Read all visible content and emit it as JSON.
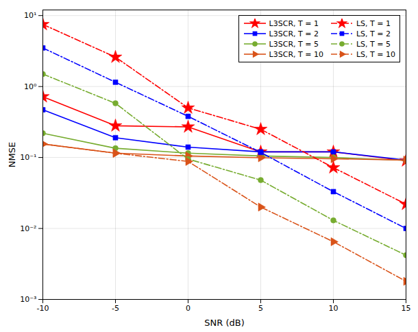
{
  "chart_data": {
    "type": "line",
    "xlabel": "SNR (dB)",
    "ylabel": "NMSE",
    "x": [
      -10,
      -5,
      0,
      5,
      10,
      15
    ],
    "xlim": [
      -10,
      15
    ],
    "xticks": [
      -10,
      -5,
      0,
      5,
      10,
      15
    ],
    "ylim": [
      0.001,
      12
    ],
    "yticks": [
      {
        "value": 0.001,
        "label": "10⁻³"
      },
      {
        "value": 0.01,
        "label": "10⁻²"
      },
      {
        "value": 0.1,
        "label": "10⁻¹"
      },
      {
        "value": 1,
        "label": "10⁰"
      },
      {
        "value": 10,
        "label": "10¹"
      }
    ],
    "log": "y",
    "grid": true,
    "legend": "upper right",
    "series": [
      {
        "name": "L3SCR, T = 1",
        "color": "#FF0000",
        "marker": "star",
        "line_style": "solid",
        "values": [
          0.72,
          0.28,
          0.27,
          0.12,
          0.12,
          0.09
        ]
      },
      {
        "name": "L3SCR, T = 2",
        "color": "#0000FF",
        "marker": "square",
        "line_style": "solid",
        "values": [
          0.47,
          0.19,
          0.14,
          0.12,
          0.12,
          0.092
        ]
      },
      {
        "name": "L3SCR, T = 5",
        "color": "#77AC30",
        "marker": "circle",
        "line_style": "solid",
        "values": [
          0.22,
          0.135,
          0.115,
          0.105,
          0.1,
          0.091
        ]
      },
      {
        "name": "L3SCR, T = 10",
        "color": "#D95319",
        "marker": "triangle-right",
        "line_style": "solid",
        "values": [
          0.155,
          0.115,
          0.105,
          0.099,
          0.096,
          0.092
        ]
      },
      {
        "name": "LS, T = 1",
        "color": "#FF0000",
        "marker": "star",
        "line_style": "dashdot",
        "values": [
          7.5,
          2.6,
          0.5,
          0.25,
          0.072,
          0.022
        ]
      },
      {
        "name": "LS, T = 2",
        "color": "#0000FF",
        "marker": "square",
        "line_style": "dashdot",
        "values": [
          3.5,
          1.15,
          0.38,
          0.118,
          0.033,
          0.01
        ]
      },
      {
        "name": "LS, T = 5",
        "color": "#77AC30",
        "marker": "circle",
        "line_style": "dashdot",
        "values": [
          1.5,
          0.58,
          0.095,
          0.048,
          0.013,
          0.0042
        ]
      },
      {
        "name": "LS, T = 10",
        "color": "#D95319",
        "marker": "triangle-right",
        "line_style": "dashdot",
        "values": [
          0.155,
          0.115,
          0.088,
          0.02,
          0.0065,
          0.0018
        ]
      }
    ]
  }
}
